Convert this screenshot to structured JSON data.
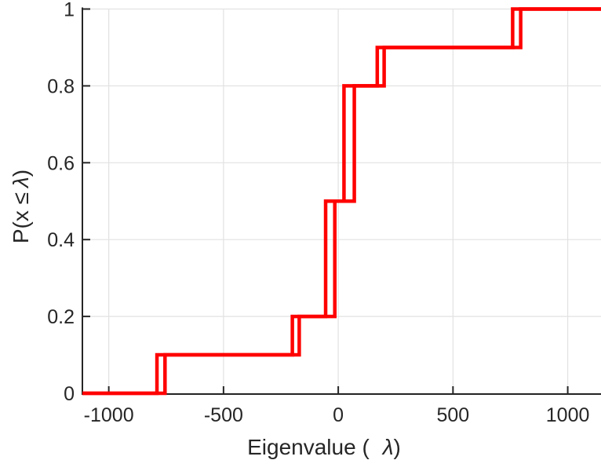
{
  "chart_data": {
    "type": "line",
    "subtype": "ecdf-stairs",
    "title": "",
    "xlabel": "Eigenvalue ( λ)",
    "ylabel": "P(x ≤ λ)",
    "xlabel_parts": {
      "prefix": "Eigenvalue (",
      "lambda": "λ",
      "suffix": ")"
    },
    "ylabel_parts": {
      "prefix": "P(x ≤",
      "lambda": "λ",
      "suffix": ")"
    },
    "xlim": [
      -1115,
      1145
    ],
    "ylim": [
      0,
      1
    ],
    "x_ticks": [
      -1000,
      -500,
      0,
      500,
      1000
    ],
    "x_tick_labels": [
      "-1000",
      "-500",
      "0",
      "500",
      "1000"
    ],
    "y_ticks": [
      0,
      0.2,
      0.4,
      0.6,
      0.8,
      1
    ],
    "y_tick_labels": [
      "0",
      "0.2",
      "0.4",
      "0.6",
      "0.8",
      "1"
    ],
    "grid": true,
    "legend_position": "none",
    "background_color": "#ffffff",
    "line_color": "#ff0000",
    "axis_color": "#262626",
    "grid_color": "#e2e2e2",
    "series": [
      {
        "name": "ecdf-curve-1",
        "jump_x": [
          -790,
          -200,
          -55,
          25,
          170,
          760
        ],
        "levels": [
          0,
          0.1,
          0.2,
          0.5,
          0.8,
          0.9,
          1.0
        ]
      },
      {
        "name": "ecdf-curve-2",
        "jump_x": [
          -755,
          -170,
          -15,
          70,
          200,
          795
        ],
        "levels": [
          0,
          0.1,
          0.2,
          0.5,
          0.8,
          0.9,
          1.0
        ]
      }
    ]
  }
}
